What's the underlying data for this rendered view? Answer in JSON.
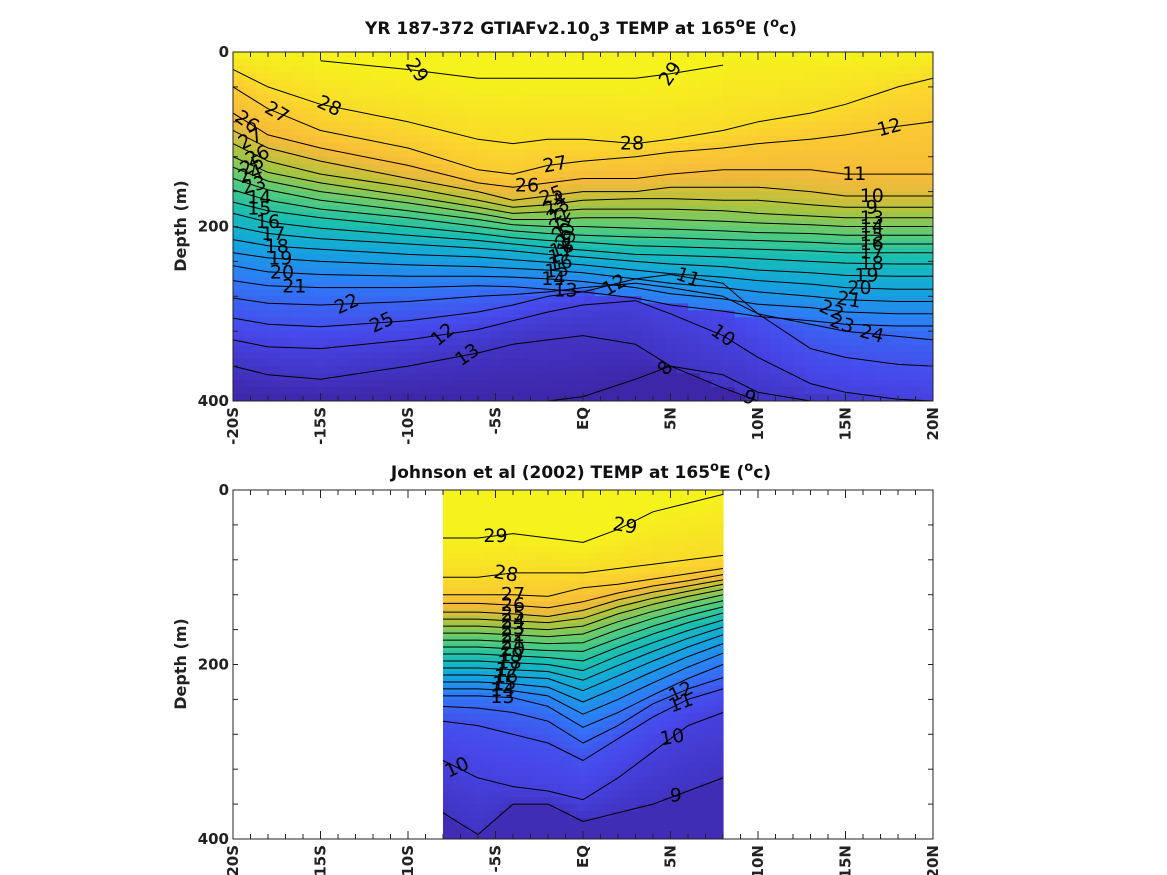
{
  "chart_data": [
    {
      "type": "heatmap",
      "subtype": "filled-contour",
      "title_main": "YR 187-372 GTIAFv2.10",
      "title_sub": "o",
      "title_rest": "3 TEMP at 165",
      "title_deg": "o",
      "title_e": "E (",
      "title_unit_o": "o",
      "title_unit_c": "c)",
      "ylabel": "Depth (m)",
      "xlabel": "",
      "x_ticklabels": [
        "-20S",
        "-15S",
        "-10S",
        "-5S",
        "EQ",
        "5N",
        "10N",
        "15N",
        "20N"
      ],
      "x_ticks": [
        -20,
        -15,
        -10,
        -5,
        0,
        5,
        10,
        15,
        20
      ],
      "y_ticklabels": [
        "0",
        "200",
        "400"
      ],
      "y_ticks": [
        0,
        200,
        400
      ],
      "xlim": [
        -20,
        20
      ],
      "ylim": [
        0,
        400
      ],
      "y_reversed": true,
      "data_xlim": [
        -20,
        20
      ],
      "contour_levels": [
        8,
        9,
        10,
        11,
        12,
        13,
        14,
        15,
        16,
        17,
        18,
        19,
        20,
        21,
        22,
        23,
        24,
        25,
        26,
        27,
        28,
        29
      ],
      "colormap": "parula",
      "color_range": [
        8,
        29
      ],
      "isotherm_depths": {
        "latitudes": [
          -20,
          -18,
          -15,
          -10,
          -6,
          -4,
          -2,
          0,
          3,
          5,
          8,
          10,
          13,
          15,
          18,
          20
        ],
        "levels": {
          "29": [
            null,
            null,
            10,
            20,
            30,
            30,
            30,
            30,
            30,
            25,
            15,
            null,
            null,
            null,
            null,
            null
          ],
          "28": [
            20,
            40,
            60,
            80,
            100,
            105,
            100,
            100,
            105,
            100,
            90,
            80,
            70,
            60,
            40,
            30
          ],
          "27": [
            40,
            65,
            90,
            110,
            135,
            140,
            130,
            125,
            120,
            115,
            110,
            105,
            100,
            95,
            85,
            80
          ],
          "26": [
            70,
            95,
            110,
            130,
            150,
            155,
            150,
            145,
            145,
            140,
            135,
            135,
            135,
            140,
            140,
            140
          ],
          "25": [
            90,
            110,
            125,
            145,
            160,
            170,
            165,
            160,
            160,
            155,
            155,
            155,
            160,
            165,
            165,
            165
          ],
          "24": [
            105,
            125,
            140,
            155,
            170,
            178,
            175,
            170,
            168,
            168,
            170,
            170,
            175,
            178,
            178,
            178
          ],
          "23": [
            120,
            138,
            150,
            165,
            178,
            185,
            183,
            180,
            180,
            180,
            182,
            185,
            188,
            190,
            190,
            190
          ],
          "22": [
            132,
            148,
            160,
            173,
            185,
            192,
            192,
            190,
            190,
            192,
            194,
            196,
            198,
            200,
            200,
            200
          ],
          "21": [
            145,
            158,
            170,
            182,
            192,
            198,
            200,
            200,
            202,
            203,
            205,
            207,
            208,
            210,
            210,
            210
          ],
          "20": [
            158,
            170,
            180,
            190,
            200,
            205,
            208,
            210,
            212,
            213,
            215,
            216,
            218,
            220,
            220,
            220
          ],
          "19": [
            172,
            182,
            190,
            200,
            208,
            213,
            216,
            218,
            222,
            223,
            225,
            226,
            228,
            230,
            230,
            230
          ],
          "18": [
            185,
            195,
            202,
            210,
            216,
            220,
            224,
            227,
            232,
            233,
            235,
            237,
            240,
            242,
            243,
            243
          ],
          "17": [
            200,
            208,
            214,
            220,
            225,
            228,
            232,
            235,
            240,
            243,
            246,
            250,
            253,
            256,
            257,
            257
          ],
          "16": [
            215,
            222,
            226,
            232,
            235,
            238,
            241,
            244,
            250,
            254,
            258,
            262,
            266,
            270,
            272,
            272
          ],
          "15": [
            230,
            236,
            240,
            244,
            246,
            248,
            250,
            253,
            260,
            265,
            270,
            275,
            280,
            284,
            286,
            286
          ],
          "14": [
            245,
            252,
            255,
            257,
            257,
            258,
            260,
            263,
            270,
            277,
            283,
            289,
            293,
            298,
            300,
            300
          ],
          "13": [
            262,
            268,
            270,
            270,
            268,
            269,
            272,
            275,
            282,
            290,
            297,
            303,
            308,
            312,
            314,
            314
          ],
          "12": [
            282,
            288,
            290,
            286,
            280,
            278,
            275,
            270,
            265,
            270,
            280,
            300,
            312,
            320,
            326,
            330
          ],
          "11": [
            305,
            312,
            315,
            308,
            298,
            290,
            280,
            275,
            260,
            255,
            265,
            300,
            340,
            350,
            358,
            360
          ],
          "10": [
            330,
            338,
            340,
            330,
            318,
            308,
            298,
            290,
            285,
            300,
            325,
            350,
            380,
            390,
            398,
            400
          ],
          "9": [
            360,
            370,
            375,
            360,
            345,
            335,
            330,
            325,
            335,
            360,
            385,
            400,
            400,
            400,
            400,
            400
          ],
          "8": [
            400,
            400,
            400,
            400,
            400,
            400,
            400,
            395,
            375,
            360,
            370,
            390,
            400,
            400,
            400,
            400
          ]
        }
      },
      "contour_labels": [
        "26",
        "27",
        "28",
        "29",
        "29",
        "28",
        "27",
        "26",
        "25",
        "24",
        "23",
        "22",
        "21",
        "20",
        "19",
        "18",
        "17",
        "16",
        "15",
        "14",
        "13",
        "12",
        "11",
        "10",
        "9",
        "8",
        "12",
        "11",
        "10",
        "9",
        "13",
        "14",
        "15",
        "16",
        "17",
        "18",
        "19",
        "20",
        "21",
        "22",
        "23",
        "24",
        "25",
        "12",
        "13",
        "14",
        "15",
        "16",
        "17",
        "18",
        "19",
        "20",
        "21",
        "22",
        "23",
        "24",
        "25",
        "26",
        "27",
        "28"
      ]
    },
    {
      "type": "heatmap",
      "subtype": "filled-contour",
      "title_main": "Johnson et al (2002) TEMP at 165",
      "title_deg": "o",
      "title_e": "E (",
      "title_unit_o": "o",
      "title_unit_c": "c)",
      "ylabel": "Depth (m)",
      "xlabel": "",
      "x_ticklabels": [
        "-20S",
        "-15S",
        "-10S",
        "-5S",
        "EQ",
        "5N",
        "10N",
        "15N",
        "20N"
      ],
      "x_ticks": [
        -20,
        -15,
        -10,
        -5,
        0,
        5,
        10,
        15,
        20
      ],
      "y_ticklabels": [
        "0",
        "200",
        "400"
      ],
      "y_ticks": [
        0,
        200,
        400
      ],
      "xlim": [
        -20,
        20
      ],
      "ylim": [
        0,
        400
      ],
      "y_reversed": true,
      "data_xlim": [
        -8,
        8
      ],
      "contour_levels": [
        9,
        10,
        11,
        12,
        13,
        14,
        15,
        16,
        17,
        18,
        19,
        20,
        21,
        22,
        23,
        24,
        25,
        26,
        27,
        28,
        29
      ],
      "colormap": "parula",
      "color_range": [
        8,
        29
      ],
      "isotherm_depths": {
        "latitudes": [
          -8,
          -6,
          -4,
          -2,
          0,
          2,
          4,
          6,
          8
        ],
        "levels": {
          "29": [
            55,
            55,
            50,
            55,
            60,
            45,
            25,
            15,
            5
          ],
          "28": [
            100,
            100,
            95,
            95,
            95,
            90,
            85,
            80,
            75
          ],
          "27": [
            120,
            120,
            120,
            122,
            112,
            108,
            102,
            96,
            90
          ],
          "26": [
            130,
            130,
            132,
            135,
            128,
            118,
            110,
            104,
            97
          ],
          "25": [
            140,
            140,
            142,
            145,
            138,
            126,
            117,
            110,
            103
          ],
          "24": [
            148,
            148,
            150,
            152,
            147,
            134,
            124,
            116,
            108
          ],
          "23": [
            156,
            156,
            158,
            160,
            156,
            142,
            131,
            122,
            114
          ],
          "22": [
            164,
            164,
            166,
            168,
            165,
            151,
            139,
            129,
            120
          ],
          "21": [
            172,
            172,
            174,
            176,
            175,
            160,
            147,
            136,
            127
          ],
          "20": [
            180,
            180,
            182,
            184,
            185,
            170,
            156,
            144,
            134
          ],
          "19": [
            188,
            188,
            190,
            192,
            196,
            180,
            165,
            152,
            141
          ],
          "18": [
            196,
            196,
            198,
            200,
            207,
            190,
            175,
            161,
            149
          ],
          "17": [
            204,
            204,
            206,
            208,
            218,
            201,
            185,
            170,
            157
          ],
          "16": [
            212,
            212,
            214,
            216,
            230,
            213,
            196,
            180,
            166
          ],
          "15": [
            220,
            220,
            222,
            226,
            243,
            226,
            208,
            191,
            176
          ],
          "14": [
            228,
            228,
            230,
            236,
            257,
            240,
            221,
            203,
            187
          ],
          "13": [
            236,
            236,
            238,
            248,
            272,
            255,
            235,
            216,
            200
          ],
          "12": [
            248,
            250,
            255,
            265,
            290,
            270,
            245,
            228,
            215
          ],
          "11": [
            265,
            270,
            280,
            290,
            310,
            285,
            260,
            240,
            228
          ],
          "10": [
            310,
            330,
            340,
            345,
            355,
            330,
            300,
            270,
            255
          ],
          "9": [
            370,
            395,
            360,
            360,
            380,
            370,
            360,
            345,
            330
          ]
        }
      },
      "contour_labels": [
        "29",
        "29",
        "28",
        "27",
        "26",
        "25",
        "24",
        "23",
        "22",
        "21",
        "20",
        "19",
        "18",
        "17",
        "16",
        "15",
        "14",
        "13",
        "12",
        "11",
        "10",
        "9",
        "10"
      ]
    }
  ]
}
